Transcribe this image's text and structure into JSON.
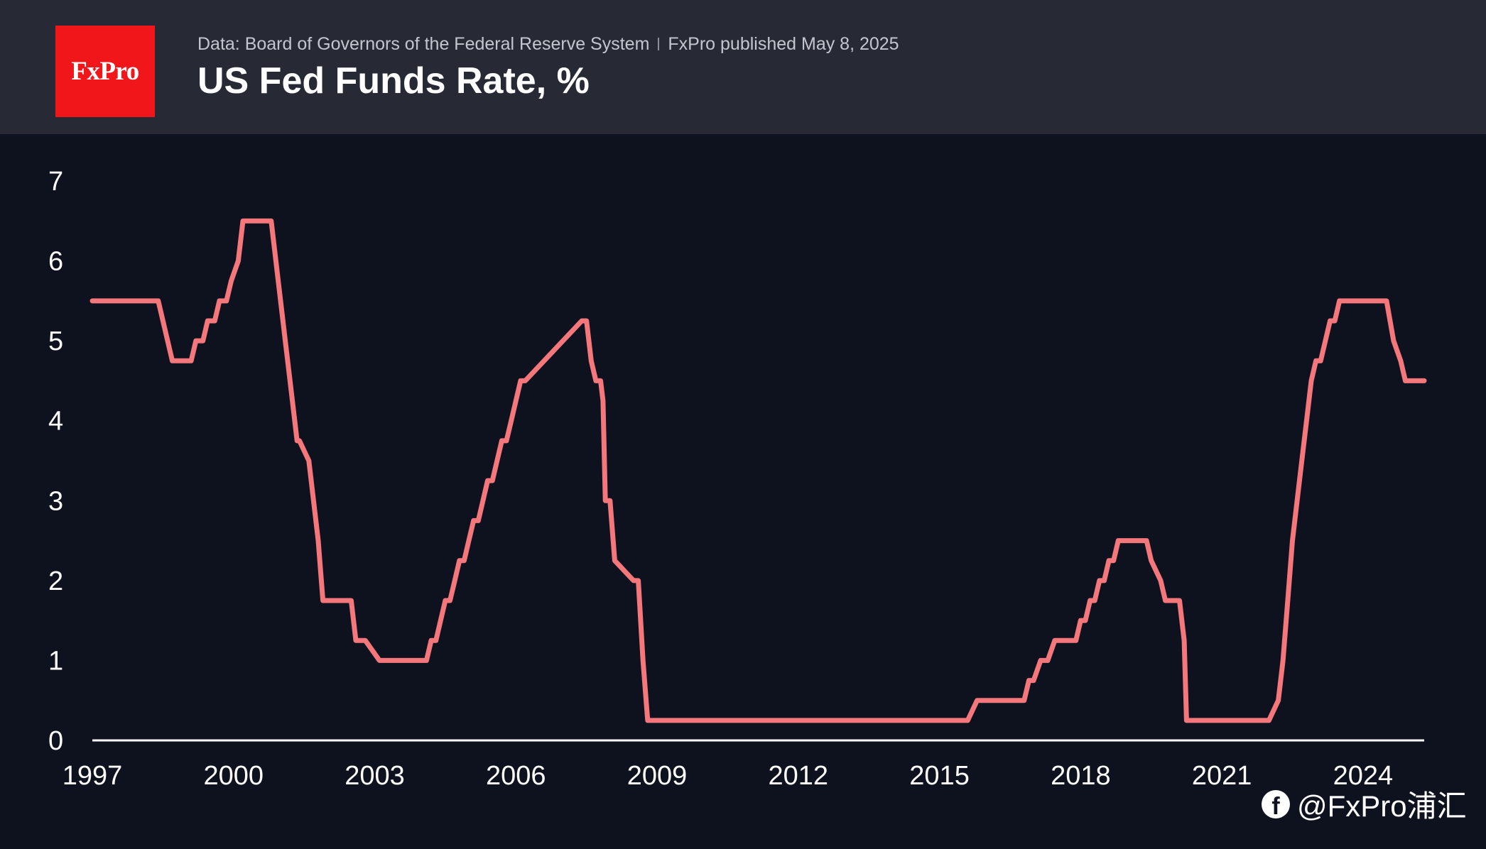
{
  "header": {
    "logo_text": "FxPro",
    "source_left": "Data: Board of Governors of the Federal Reserve System",
    "source_right": "FxPro published May 8, 2025"
  },
  "watermark": {
    "icon": "facebook-icon",
    "text": "@FxPro浦汇"
  },
  "colors": {
    "background": "#0d121e",
    "header_background": "#272935",
    "logo_red": "#f0161a",
    "series_line": "#f4777c",
    "axis_line": "#ffffff"
  },
  "chart_data": {
    "type": "line",
    "title": "US Fed Funds Rate, %",
    "xlabel": "",
    "ylabel": "",
    "xlim": [
      1997.0,
      2025.3
    ],
    "ylim": [
      0,
      7
    ],
    "grid": false,
    "legend": "none",
    "x_ticks": [
      1997,
      2000,
      2003,
      2006,
      2009,
      2012,
      2015,
      2018,
      2021,
      2024
    ],
    "x_tick_labels": [
      "1997",
      "2000",
      "2003",
      "2006",
      "2009",
      "2012",
      "2015",
      "2018",
      "2021",
      "2024"
    ],
    "y_ticks": [
      0,
      1,
      2,
      3,
      4,
      5,
      6,
      7
    ],
    "y_tick_labels": [
      "0",
      "1",
      "2",
      "3",
      "4",
      "5",
      "6",
      "7"
    ],
    "series": [
      {
        "color": "#f4777c",
        "x": [
          1997.0,
          1998.4,
          1998.7,
          1999.1,
          1999.2,
          1999.35,
          1999.45,
          1999.6,
          1999.7,
          1999.85,
          1999.95,
          2000.1,
          2000.2,
          2000.8,
          2001.0,
          2001.1,
          2001.2,
          2001.3,
          2001.35,
          2001.4,
          2001.6,
          2001.8,
          2001.9,
          2002.5,
          2002.6,
          2002.8,
          2003.1,
          2003.2,
          2004.1,
          2004.2,
          2004.3,
          2004.4,
          2004.5,
          2004.6,
          2004.7,
          2004.8,
          2004.9,
          2005.0,
          2005.1,
          2005.2,
          2005.3,
          2005.4,
          2005.5,
          2005.6,
          2005.7,
          2005.8,
          2005.9,
          2006.0,
          2006.1,
          2006.2,
          2007.4,
          2007.5,
          2007.6,
          2007.7,
          2007.8,
          2007.85,
          2007.9,
          2008.0,
          2008.1,
          2008.5,
          2008.6,
          2008.65,
          2008.7,
          2008.8,
          2015.6,
          2015.8,
          2016.8,
          2016.9,
          2017.0,
          2017.15,
          2017.3,
          2017.45,
          2017.9,
          2018.0,
          2018.1,
          2018.2,
          2018.3,
          2018.4,
          2018.5,
          2018.6,
          2018.7,
          2018.8,
          2018.9,
          2019.4,
          2019.5,
          2019.7,
          2019.8,
          2020.1,
          2020.2,
          2020.25,
          2021.8,
          2022.0,
          2022.2,
          2022.3,
          2022.4,
          2022.5,
          2022.6,
          2022.7,
          2022.8,
          2022.9,
          2023.0,
          2023.1,
          2023.3,
          2023.4,
          2023.5,
          2024.5,
          2024.65,
          2024.8,
          2024.9,
          2025.3
        ],
        "values": [
          5.5,
          5.5,
          4.75,
          4.75,
          5.0,
          5.0,
          5.25,
          5.25,
          5.5,
          5.5,
          5.75,
          6.0,
          6.5,
          6.5,
          5.5,
          5.0,
          4.5,
          4.0,
          3.75,
          3.75,
          3.5,
          2.5,
          1.75,
          1.75,
          1.25,
          1.25,
          1.0,
          1.0,
          1.0,
          1.25,
          1.25,
          1.5,
          1.75,
          1.75,
          2.0,
          2.25,
          2.25,
          2.5,
          2.75,
          2.75,
          3.0,
          3.25,
          3.25,
          3.5,
          3.75,
          3.75,
          4.0,
          4.25,
          4.5,
          4.5,
          5.25,
          5.25,
          4.75,
          4.5,
          4.5,
          4.25,
          3.0,
          3.0,
          2.25,
          2.0,
          2.0,
          1.5,
          1.0,
          0.25,
          0.25,
          0.5,
          0.5,
          0.75,
          0.75,
          1.0,
          1.0,
          1.25,
          1.25,
          1.5,
          1.5,
          1.75,
          1.75,
          2.0,
          2.0,
          2.25,
          2.25,
          2.5,
          2.5,
          2.5,
          2.25,
          2.0,
          1.75,
          1.75,
          1.25,
          0.25,
          0.25,
          0.25,
          0.5,
          1.0,
          1.75,
          2.5,
          3.0,
          3.5,
          4.0,
          4.5,
          4.75,
          4.75,
          5.25,
          5.25,
          5.5,
          5.5,
          5.0,
          4.75,
          4.5,
          4.5
        ]
      }
    ]
  }
}
